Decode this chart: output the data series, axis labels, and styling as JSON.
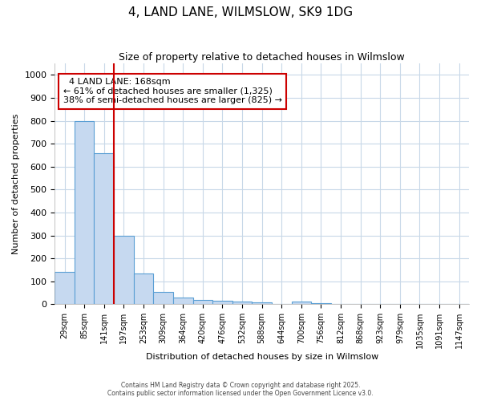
{
  "title": "4, LAND LANE, WILMSLOW, SK9 1DG",
  "subtitle": "Size of property relative to detached houses in Wilmslow",
  "xlabel": "Distribution of detached houses by size in Wilmslow",
  "ylabel": "Number of detached properties",
  "categories": [
    "29sqm",
    "85sqm",
    "141sqm",
    "197sqm",
    "253sqm",
    "309sqm",
    "364sqm",
    "420sqm",
    "476sqm",
    "532sqm",
    "588sqm",
    "644sqm",
    "700sqm",
    "756sqm",
    "812sqm",
    "868sqm",
    "923sqm",
    "979sqm",
    "1035sqm",
    "1091sqm",
    "1147sqm"
  ],
  "values": [
    140,
    800,
    660,
    300,
    135,
    55,
    30,
    18,
    15,
    12,
    8,
    0,
    10,
    5,
    0,
    0,
    0,
    0,
    0,
    0,
    0
  ],
  "bar_color": "#c6d9f0",
  "bar_edge_color": "#5a9fd4",
  "grid_color": "#c8d8e8",
  "background_color": "#ffffff",
  "red_line_x": 2.5,
  "annotation_title": "4 LAND LANE: 168sqm",
  "annotation_line1": "← 61% of detached houses are smaller (1,325)",
  "annotation_line2": "38% of semi-detached houses are larger (825) →",
  "annotation_box_color": "#cc0000",
  "ylim": [
    0,
    1050
  ],
  "yticks": [
    0,
    100,
    200,
    300,
    400,
    500,
    600,
    700,
    800,
    900,
    1000
  ],
  "footer_line1": "Contains HM Land Registry data © Crown copyright and database right 2025.",
  "footer_line2": "Contains public sector information licensed under the Open Government Licence v3.0."
}
